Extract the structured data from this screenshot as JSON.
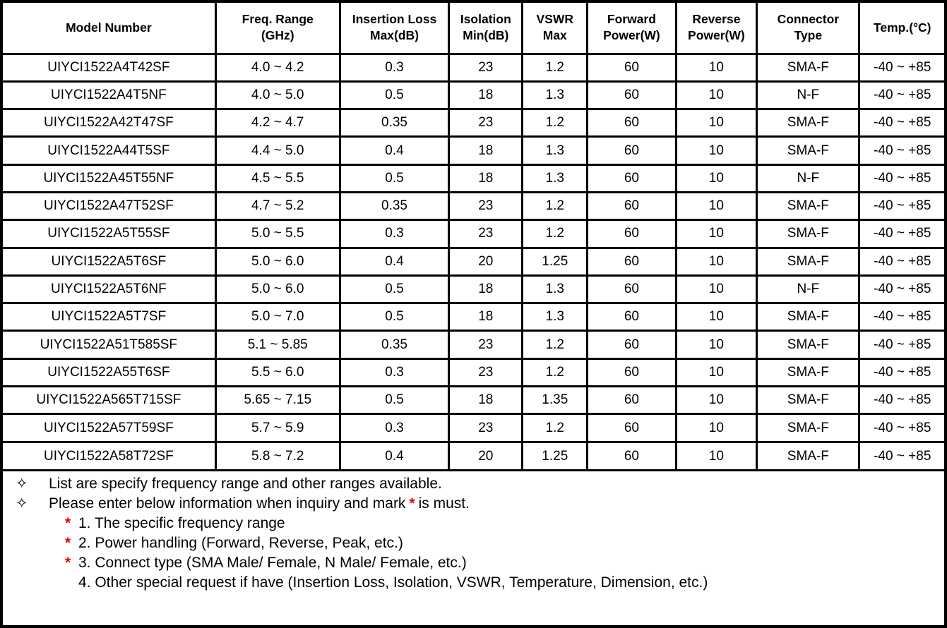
{
  "table": {
    "headers": [
      {
        "id": "model-number",
        "lines": [
          "Model Number"
        ]
      },
      {
        "id": "freq-range",
        "lines": [
          "Freq. Range",
          "(GHz)"
        ]
      },
      {
        "id": "insertion-loss",
        "lines": [
          "Insertion Loss",
          "Max(dB)"
        ]
      },
      {
        "id": "isolation",
        "lines": [
          "Isolation",
          "Min(dB)"
        ]
      },
      {
        "id": "vswr",
        "lines": [
          "VSWR",
          "Max"
        ]
      },
      {
        "id": "forward-power",
        "lines": [
          "Forward",
          "Power(W)"
        ]
      },
      {
        "id": "reverse-power",
        "lines": [
          "Reverse",
          "Power(W)"
        ]
      },
      {
        "id": "connector-type",
        "lines": [
          "Connector",
          "Type"
        ]
      },
      {
        "id": "temp",
        "lines": [
          "Temp.(°C)"
        ]
      }
    ],
    "rows": [
      [
        "UIYCI1522A4T42SF",
        "4.0 ~ 4.2",
        "0.3",
        "23",
        "1.2",
        "60",
        "10",
        "SMA-F",
        "-40 ~ +85"
      ],
      [
        "UIYCI1522A4T5NF",
        "4.0 ~ 5.0",
        "0.5",
        "18",
        "1.3",
        "60",
        "10",
        "N-F",
        "-40 ~ +85"
      ],
      [
        "UIYCI1522A42T47SF",
        "4.2 ~ 4.7",
        "0.35",
        "23",
        "1.2",
        "60",
        "10",
        "SMA-F",
        "-40 ~ +85"
      ],
      [
        "UIYCI1522A44T5SF",
        "4.4 ~ 5.0",
        "0.4",
        "18",
        "1.3",
        "60",
        "10",
        "SMA-F",
        "-40 ~ +85"
      ],
      [
        "UIYCI1522A45T55NF",
        "4.5 ~ 5.5",
        "0.5",
        "18",
        "1.3",
        "60",
        "10",
        "N-F",
        "-40 ~ +85"
      ],
      [
        "UIYCI1522A47T52SF",
        "4.7 ~ 5.2",
        "0.35",
        "23",
        "1.2",
        "60",
        "10",
        "SMA-F",
        "-40 ~ +85"
      ],
      [
        "UIYCI1522A5T55SF",
        "5.0 ~ 5.5",
        "0.3",
        "23",
        "1.2",
        "60",
        "10",
        "SMA-F",
        "-40 ~ +85"
      ],
      [
        "UIYCI1522A5T6SF",
        "5.0 ~ 6.0",
        "0.4",
        "20",
        "1.25",
        "60",
        "10",
        "SMA-F",
        "-40 ~ +85"
      ],
      [
        "UIYCI1522A5T6NF",
        "5.0 ~ 6.0",
        "0.5",
        "18",
        "1.3",
        "60",
        "10",
        "N-F",
        "-40 ~ +85"
      ],
      [
        "UIYCI1522A5T7SF",
        "5.0 ~ 7.0",
        "0.5",
        "18",
        "1.3",
        "60",
        "10",
        "SMA-F",
        "-40 ~ +85"
      ],
      [
        "UIYCI1522A51T585SF",
        "5.1 ~ 5.85",
        "0.35",
        "23",
        "1.2",
        "60",
        "10",
        "SMA-F",
        "-40 ~ +85"
      ],
      [
        "UIYCI1522A55T6SF",
        "5.5 ~ 6.0",
        "0.3",
        "23",
        "1.2",
        "60",
        "10",
        "SMA-F",
        "-40 ~ +85"
      ],
      [
        "UIYCI1522A565T715SF",
        "5.65 ~ 7.15",
        "0.5",
        "18",
        "1.35",
        "60",
        "10",
        "SMA-F",
        "-40 ~ +85"
      ],
      [
        "UIYCI1522A57T59SF",
        "5.7 ~ 5.9",
        "0.3",
        "23",
        "1.2",
        "60",
        "10",
        "SMA-F",
        "-40 ~ +85"
      ],
      [
        "UIYCI1522A58T72SF",
        "5.8 ~ 7.2",
        "0.4",
        "20",
        "1.25",
        "60",
        "10",
        "SMA-F",
        "-40 ~ +85"
      ]
    ]
  },
  "notes": {
    "bullet_glyph": "✧",
    "star_glyph": "*",
    "bullet1": "List are specify frequency range and other ranges available.",
    "bullet2_prefix": "Please enter below information when inquiry and mark",
    "bullet2_suffix": "is must.",
    "item1": "1. The specific frequency range",
    "item2": "2. Power handling (Forward, Reverse, Peak, etc.)",
    "item3": "3. Connect type (SMA Male/ Female, N Male/ Female, etc.)",
    "item4": "4. Other special request if have (Insertion Loss, Isolation, VSWR, Temperature, Dimension, etc.)"
  },
  "colors": {
    "required_red": "#ee0000",
    "border_black": "#000000",
    "background": "#ffffff"
  }
}
